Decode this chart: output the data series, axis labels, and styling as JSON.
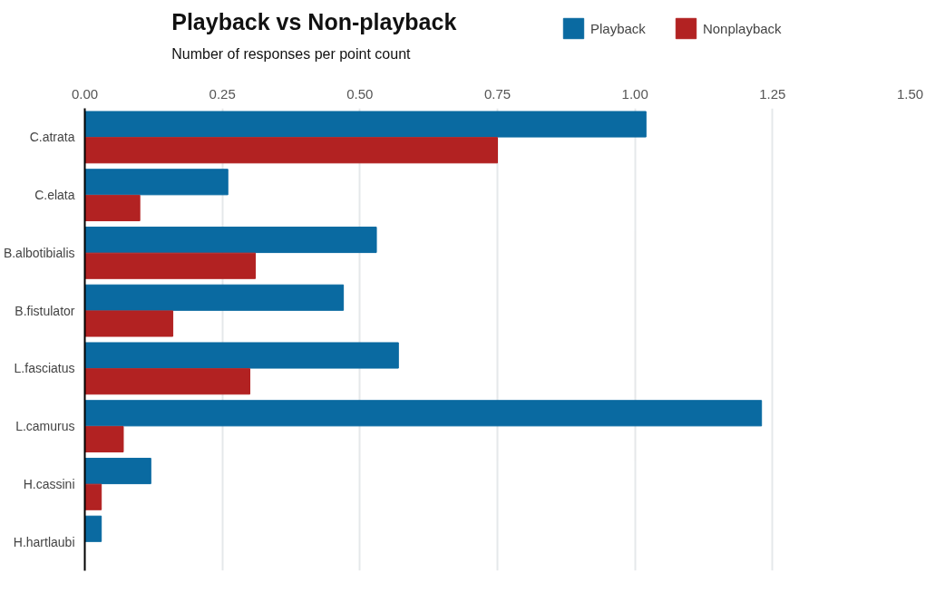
{
  "chart_data": {
    "type": "bar",
    "orientation": "horizontal",
    "title": "Playback vs Non-playback",
    "subtitle": "Number of responses per point count",
    "categories": [
      "C.atrata",
      "C.elata",
      "B.albotibialis",
      "B.fistulator",
      "L.fasciatus",
      "L.camurus",
      "H.cassini",
      "H.hartlaubi"
    ],
    "series": [
      {
        "name": "Playback",
        "color": "#0a6aa1",
        "values": [
          1.02,
          0.26,
          0.53,
          0.47,
          0.57,
          1.23,
          0.12,
          0.03
        ]
      },
      {
        "name": "Nonplayback",
        "color": "#b22222",
        "values": [
          0.75,
          0.1,
          0.31,
          0.16,
          0.3,
          0.07,
          0.03,
          0
        ]
      }
    ],
    "xlim": [
      0,
      1.5
    ],
    "xticks": [
      {
        "value": 0,
        "label": "0.00"
      },
      0.25,
      {
        "value": 0.5,
        "label": "0.50"
      },
      0.75,
      {
        "value": 1,
        "label": "1.00"
      },
      1.25,
      {
        "value": 1.5,
        "label": "1.50"
      }
    ],
    "grid": "x",
    "legend": "top"
  }
}
